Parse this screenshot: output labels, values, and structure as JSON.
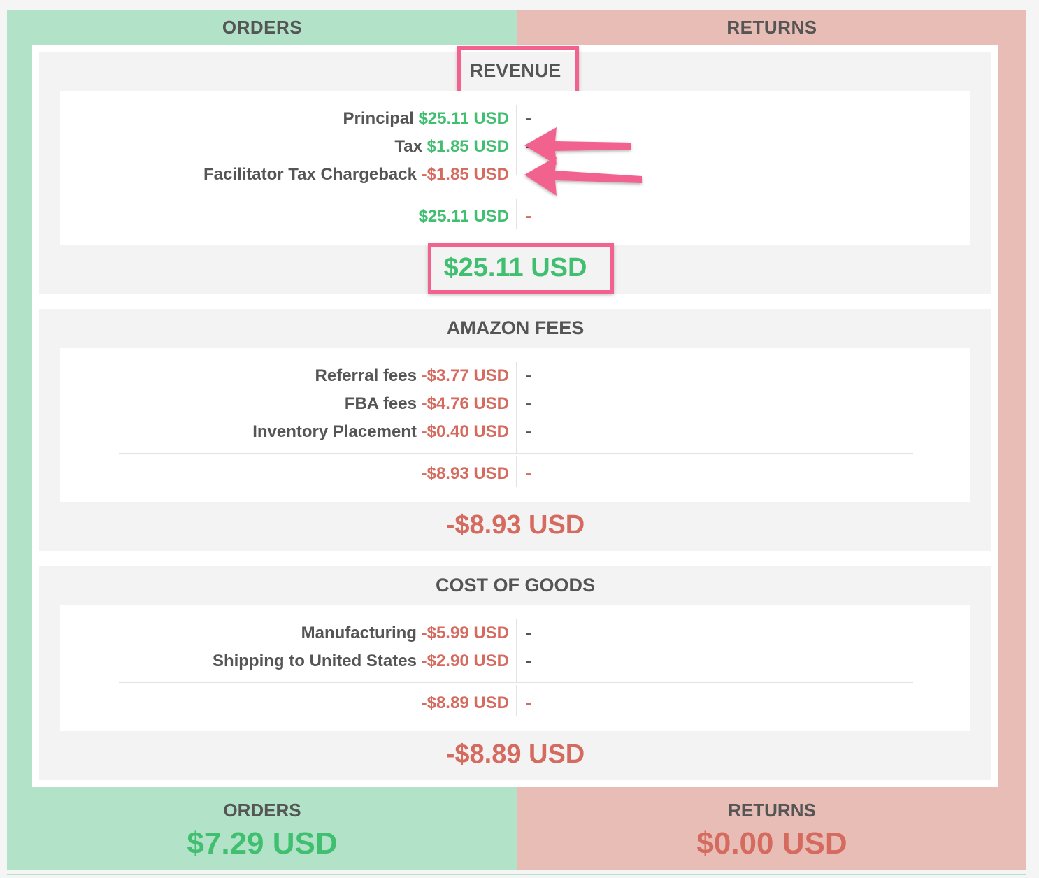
{
  "columns": {
    "orders": "ORDERS",
    "returns": "RETURNS"
  },
  "revenue": {
    "title": "REVENUE",
    "rows": [
      {
        "label": "Principal",
        "value": "$25.11 USD",
        "returns": "-"
      },
      {
        "label": "Tax",
        "value": "$1.85 USD",
        "returns": "-"
      },
      {
        "label": "Facilitator Tax Chargeback",
        "value": "-$1.85 USD",
        "returns": "-"
      }
    ],
    "subtotal": {
      "value": "$25.11 USD",
      "returns": "-"
    },
    "total": "$25.11 USD"
  },
  "amazon_fees": {
    "title": "AMAZON FEES",
    "rows": [
      {
        "label": "Referral fees",
        "value": "-$3.77 USD",
        "returns": "-"
      },
      {
        "label": "FBA fees",
        "value": "-$4.76 USD",
        "returns": "-"
      },
      {
        "label": "Inventory Placement",
        "value": "-$0.40 USD",
        "returns": "-"
      }
    ],
    "subtotal": {
      "value": "-$8.93 USD",
      "returns": "-"
    },
    "total": "-$8.93 USD"
  },
  "cost_of_goods": {
    "title": "COST OF GOODS",
    "rows": [
      {
        "label": "Manufacturing",
        "value": "-$5.99 USD",
        "returns": "-"
      },
      {
        "label": "Shipping to United States",
        "value": "-$2.90 USD",
        "returns": "-"
      }
    ],
    "subtotal": {
      "value": "-$8.89 USD",
      "returns": "-"
    },
    "total": "-$8.89 USD"
  },
  "footer": {
    "orders_label": "ORDERS",
    "orders_total": "$7.29 USD",
    "returns_label": "RETURNS",
    "returns_total": "$0.00 USD"
  },
  "colors": {
    "orders_bg": "#b2e3c8",
    "returns_bg": "#e8bdb6",
    "positive": "#3fbf6f",
    "negative": "#d56a5e",
    "annotation": "#f2628f"
  },
  "annotations": {
    "icons": [
      "arrow-left-icon",
      "arrow-left-icon"
    ]
  }
}
